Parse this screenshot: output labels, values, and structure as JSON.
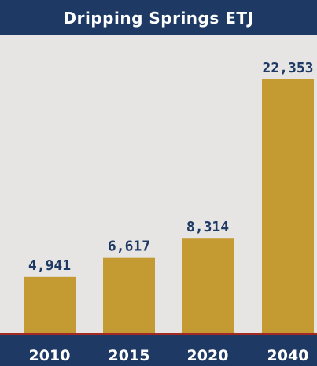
{
  "chart_data": {
    "type": "bar",
    "title": "Dripping Springs ETJ",
    "categories": [
      "2010",
      "2015",
      "2020",
      "2040"
    ],
    "values": [
      4941,
      6617,
      8314,
      22353
    ],
    "value_labels": [
      "4,941",
      "6,617",
      "8,314",
      "22,353"
    ],
    "ylim": [
      0,
      22353
    ],
    "grid": false,
    "legend": "none"
  },
  "colors": {
    "background": "#1e3a64",
    "plot_background": "#e7e5e4",
    "bar": "#c49a32",
    "baseline": "#a32a22",
    "value_label": "#1e3a64",
    "tick_label": "#ffffff"
  }
}
